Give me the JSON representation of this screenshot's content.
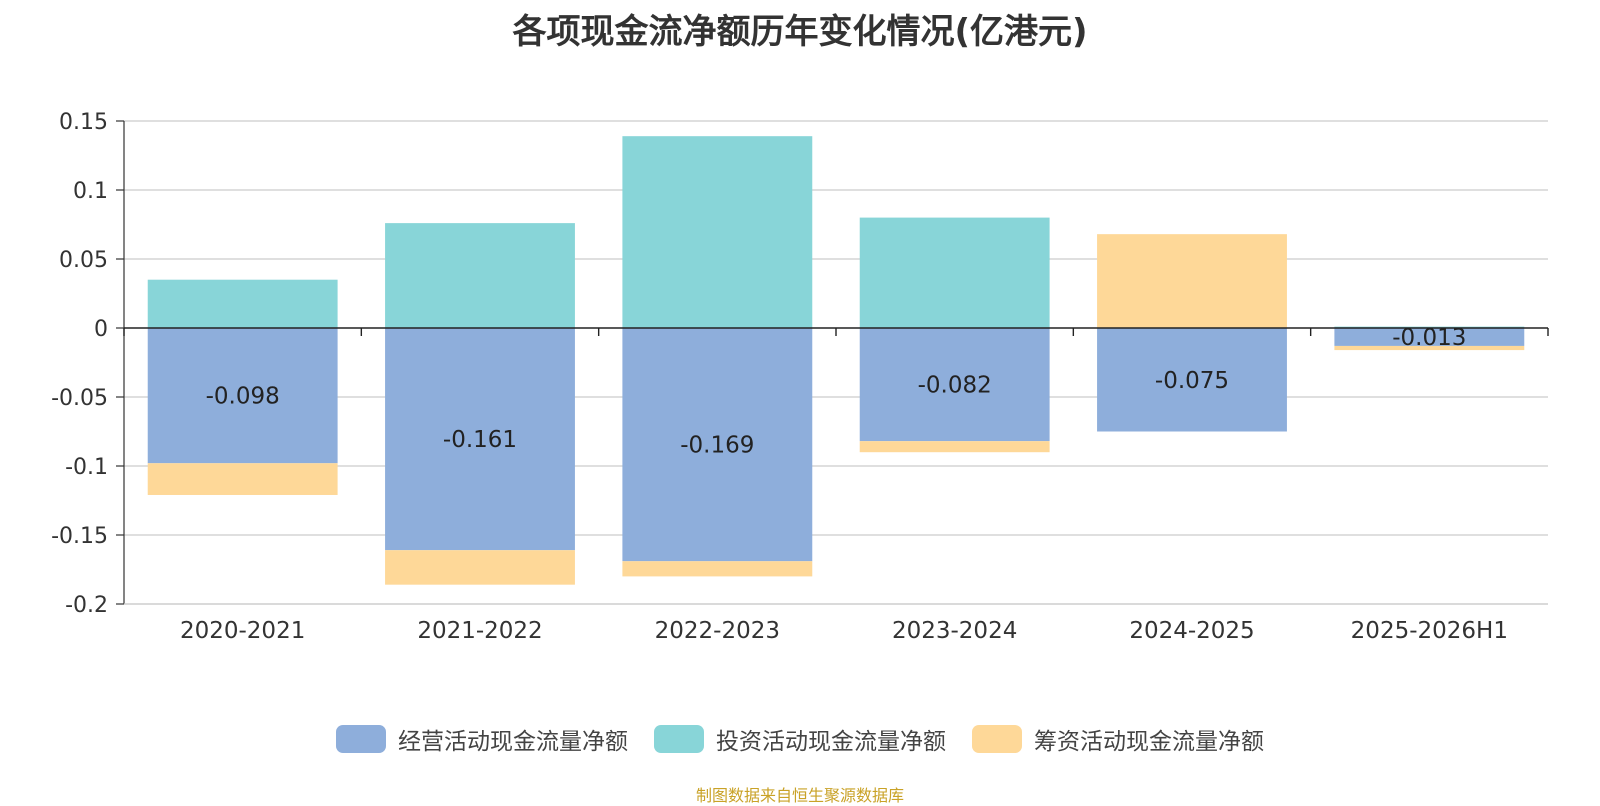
{
  "chart_data": {
    "type": "bar",
    "stacked": true,
    "title": "各项现金流净额历年变化情况(亿港元)",
    "categories": [
      "2020-2021",
      "2021-2022",
      "2022-2023",
      "2023-2024",
      "2024-2025",
      "2025-2026H1"
    ],
    "series": [
      {
        "name": "经营活动现金流量净额",
        "color": "#8eaedb",
        "values": [
          -0.098,
          -0.161,
          -0.169,
          -0.082,
          -0.075,
          -0.013
        ],
        "labels": [
          "-0.098",
          "-0.161",
          "-0.169",
          "-0.082",
          "-0.075",
          "-0.013"
        ]
      },
      {
        "name": "投资活动现金流量净额",
        "color": "#88d5d8",
        "values": [
          0.035,
          0.076,
          0.139,
          0.08,
          0,
          0.001
        ]
      },
      {
        "name": "筹资活动现金流量净额",
        "color": "#fed898",
        "values": [
          -0.023,
          -0.025,
          -0.011,
          -0.008,
          0.068,
          -0.003
        ]
      }
    ],
    "ylim": [
      -0.2,
      0.15
    ],
    "yticks": [
      0.15,
      0.1,
      0.05,
      0,
      -0.05,
      -0.1,
      -0.15,
      -0.2
    ],
    "ytick_labels": [
      "0.15",
      "0.1",
      "0.05",
      "0",
      "-0.05",
      "-0.1",
      "-0.15",
      "-0.2"
    ],
    "grid": true,
    "legend_position": "bottom"
  },
  "source": "制图数据来自恒生聚源数据库"
}
